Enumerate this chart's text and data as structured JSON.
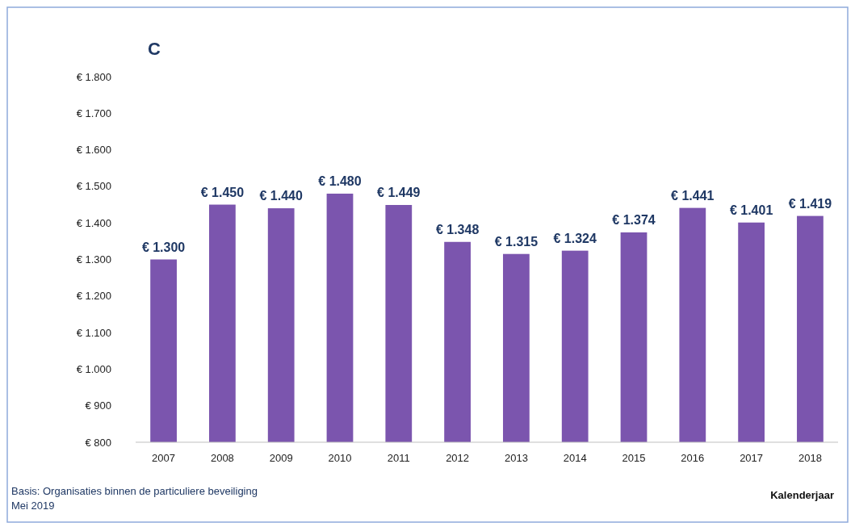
{
  "chart_data": {
    "type": "bar",
    "title": "C",
    "xlabel": "Kalenderjaar",
    "categories": [
      "2007",
      "2008",
      "2009",
      "2010",
      "2011",
      "2012",
      "2013",
      "2014",
      "2015",
      "2016",
      "2017",
      "2018"
    ],
    "values": [
      1300,
      1450,
      1440,
      1480,
      1449,
      1348,
      1315,
      1324,
      1374,
      1441,
      1401,
      1419
    ],
    "value_labels": [
      "€ 1.300",
      "€ 1.450",
      "€ 1.440",
      "€ 1.480",
      "€ 1.449",
      "€ 1.348",
      "€ 1.315",
      "€ 1.324",
      "€ 1.374",
      "€ 1.441",
      "€ 1.401",
      "€ 1.419"
    ],
    "color": "#7b55ae",
    "ylim": [
      800,
      1800
    ],
    "yticks": [
      {
        "value": 800,
        "label": "€ 800"
      },
      {
        "value": 900,
        "label": "€ 900"
      },
      {
        "value": 1000,
        "label": "€ 1.000"
      },
      {
        "value": 1100,
        "label": "€ 1.100"
      },
      {
        "value": 1200,
        "label": "€ 1.200"
      },
      {
        "value": 1300,
        "label": "€ 1.300"
      },
      {
        "value": 1400,
        "label": "€ 1.400"
      },
      {
        "value": 1500,
        "label": "€ 1.500"
      },
      {
        "value": 1600,
        "label": "€ 1.600"
      },
      {
        "value": 1700,
        "label": "€ 1.700"
      },
      {
        "value": 1800,
        "label": "€ 1.800"
      }
    ],
    "grid": false,
    "annotations": [
      "Basis: Organisaties binnen de particuliere beveiliging",
      "Mei 2019"
    ]
  }
}
